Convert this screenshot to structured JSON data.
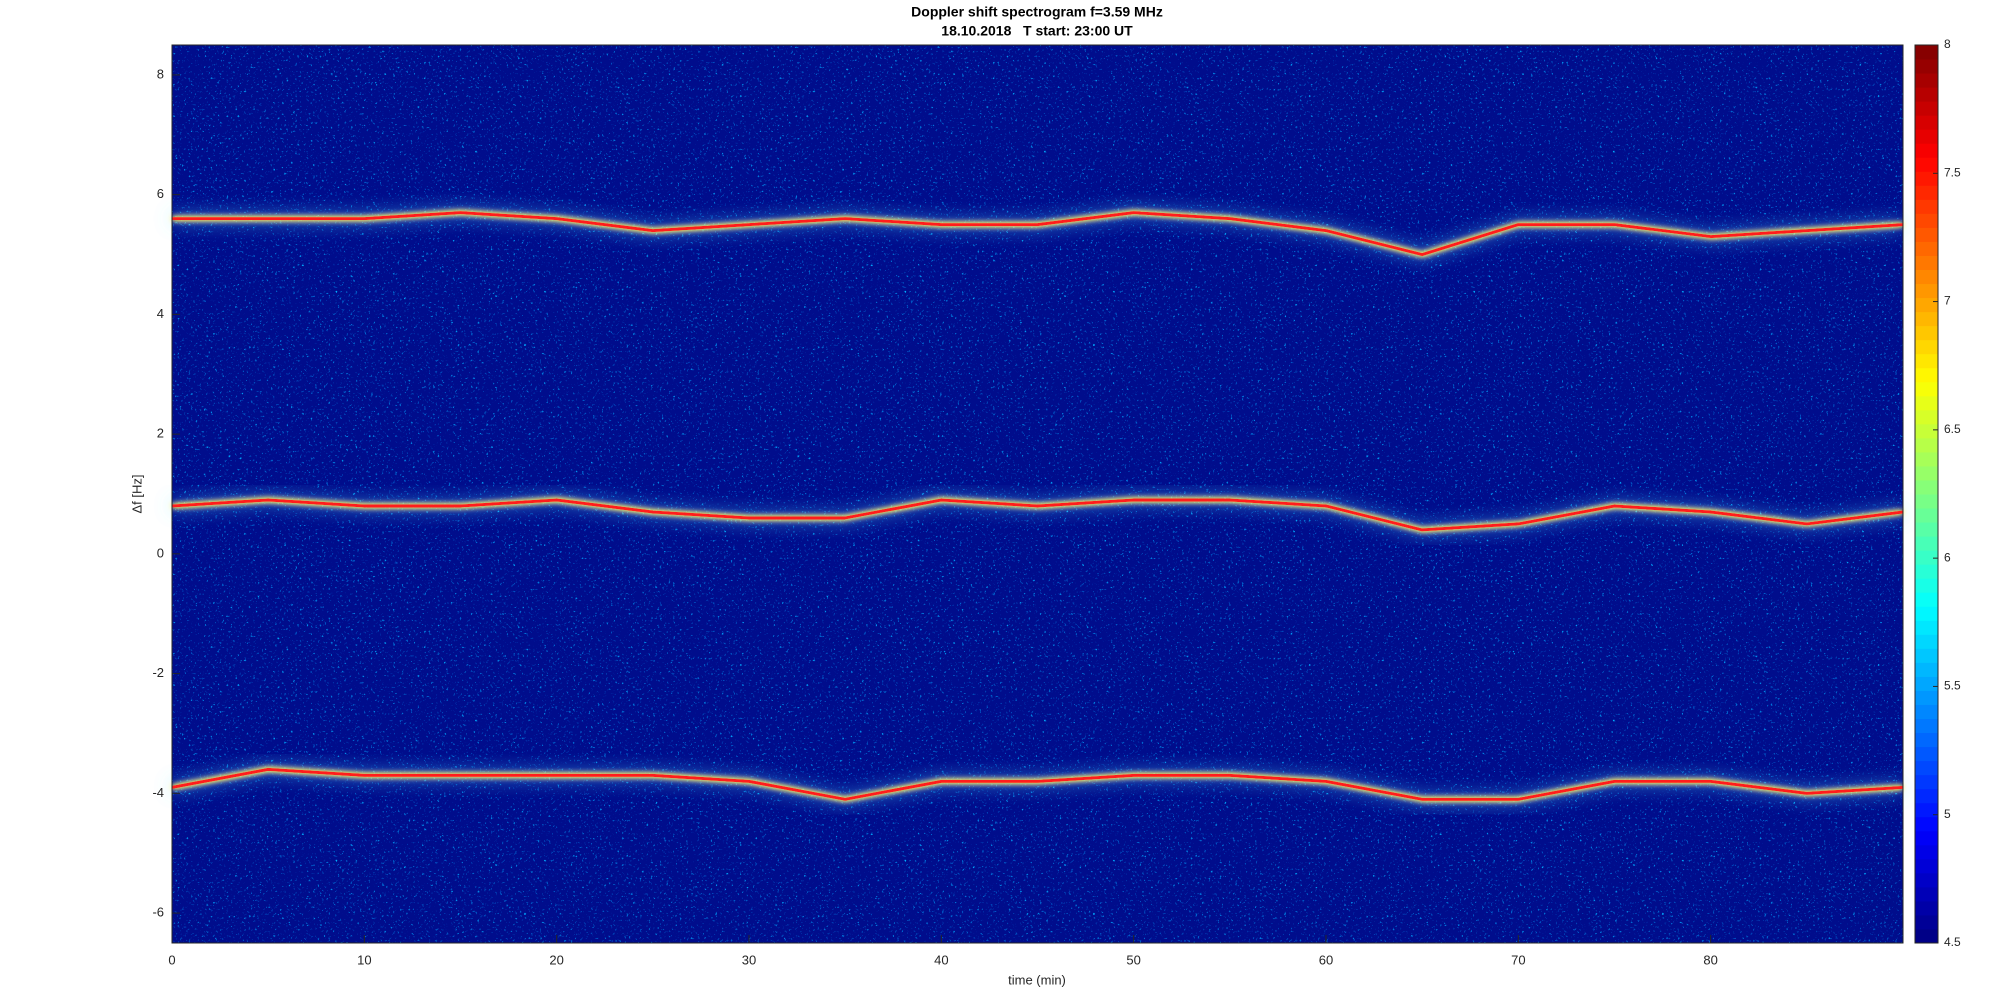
{
  "chart_data": {
    "type": "spectrogram",
    "title": "Doppler shift spectrogram f=3.59 MHz",
    "subtitle": "18.10.2018   T start: 23:00 UT",
    "x_label": "time (min)",
    "y_label": "Δf [Hz]",
    "x": [
      0,
      5,
      10,
      15,
      20,
      25,
      30,
      35,
      40,
      45,
      50,
      55,
      60,
      65,
      70,
      75,
      80,
      85,
      90
    ],
    "series": [
      {
        "color": "#ff1a1a",
        "values": [
          5.6,
          5.6,
          5.6,
          5.7,
          5.6,
          5.4,
          5.5,
          5.6,
          5.5,
          5.5,
          5.7,
          5.6,
          5.4,
          5.0,
          5.5,
          5.5,
          5.3,
          5.4,
          5.5
        ]
      },
      {
        "color": "#ff1a1a",
        "values": [
          0.8,
          0.9,
          0.8,
          0.8,
          0.9,
          0.7,
          0.6,
          0.6,
          0.9,
          0.8,
          0.9,
          0.9,
          0.8,
          0.4,
          0.5,
          0.8,
          0.7,
          0.5,
          0.7
        ]
      },
      {
        "color": "#ff1a1a",
        "values": [
          -3.9,
          -3.6,
          -3.7,
          -3.7,
          -3.7,
          -3.7,
          -3.8,
          -4.1,
          -3.8,
          -3.8,
          -3.7,
          -3.7,
          -3.8,
          -4.1,
          -4.1,
          -3.8,
          -3.8,
          -4.0,
          -3.9
        ]
      }
    ],
    "xlim": [
      0,
      90
    ],
    "xticks": [
      0,
      10,
      20,
      30,
      40,
      50,
      60,
      70,
      80
    ],
    "ylim": [
      -6.5,
      8.5
    ],
    "yticks": [
      -6,
      -4,
      -2,
      0,
      2,
      4,
      6,
      8
    ],
    "colormap": "jet",
    "clim": [
      4.5,
      8
    ],
    "cticks": [
      4.5,
      5,
      5.5,
      6,
      6.5,
      7,
      7.5,
      8
    ]
  }
}
